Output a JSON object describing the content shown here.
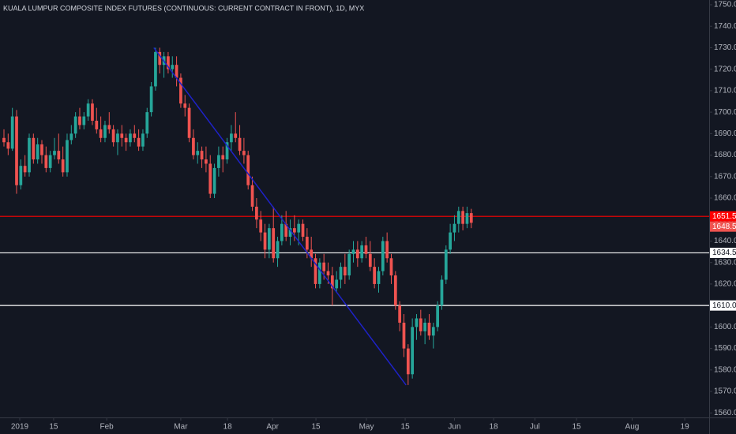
{
  "chart_data": {
    "type": "candlestick",
    "title": "KUALA LUMPUR COMPOSITE INDEX FUTURES (CONTINUOUS: CURRENT CONTRACT IN FRONT), 1D, MYX",
    "up_color": "#26a69a",
    "down_color": "#ef5350",
    "ohlc": [
      [
        1688,
        1692,
        1684,
        1686
      ],
      [
        1686,
        1690,
        1680,
        1683
      ],
      [
        1683,
        1702,
        1682,
        1698
      ],
      [
        1698,
        1701,
        1662,
        1666
      ],
      [
        1666,
        1678,
        1664,
        1675
      ],
      [
        1675,
        1680,
        1670,
        1672
      ],
      [
        1672,
        1690,
        1670,
        1688
      ],
      [
        1688,
        1690,
        1676,
        1678
      ],
      [
        1678,
        1688,
        1676,
        1685
      ],
      [
        1685,
        1687,
        1676,
        1680
      ],
      [
        1680,
        1684,
        1672,
        1674
      ],
      [
        1674,
        1682,
        1672,
        1680
      ],
      [
        1680,
        1688,
        1678,
        1682
      ],
      [
        1682,
        1690,
        1676,
        1678
      ],
      [
        1678,
        1684,
        1670,
        1672
      ],
      [
        1672,
        1690,
        1670,
        1687
      ],
      [
        1687,
        1694,
        1685,
        1690
      ],
      [
        1690,
        1700,
        1688,
        1698
      ],
      [
        1698,
        1702,
        1692,
        1694
      ],
      [
        1694,
        1700,
        1692,
        1698
      ],
      [
        1698,
        1706,
        1696,
        1704
      ],
      [
        1704,
        1706,
        1694,
        1696
      ],
      [
        1696,
        1702,
        1690,
        1692
      ],
      [
        1692,
        1698,
        1686,
        1688
      ],
      [
        1688,
        1696,
        1686,
        1694
      ],
      [
        1694,
        1700,
        1690,
        1692
      ],
      [
        1692,
        1694,
        1684,
        1686
      ],
      [
        1686,
        1692,
        1680,
        1690
      ],
      [
        1690,
        1694,
        1684,
        1688
      ],
      [
        1688,
        1690,
        1682,
        1686
      ],
      [
        1686,
        1692,
        1684,
        1690
      ],
      [
        1690,
        1694,
        1686,
        1688
      ],
      [
        1688,
        1692,
        1682,
        1684
      ],
      [
        1684,
        1692,
        1682,
        1690
      ],
      [
        1690,
        1702,
        1688,
        1700
      ],
      [
        1700,
        1714,
        1698,
        1712
      ],
      [
        1712,
        1730,
        1710,
        1728
      ],
      [
        1728,
        1730,
        1718,
        1722
      ],
      [
        1722,
        1728,
        1716,
        1726
      ],
      [
        1726,
        1728,
        1718,
        1720
      ],
      [
        1720,
        1726,
        1716,
        1722
      ],
      [
        1722,
        1726,
        1712,
        1716
      ],
      [
        1716,
        1718,
        1702,
        1704
      ],
      [
        1704,
        1708,
        1698,
        1702
      ],
      [
        1702,
        1704,
        1686,
        1688
      ],
      [
        1688,
        1692,
        1678,
        1680
      ],
      [
        1680,
        1686,
        1676,
        1682
      ],
      [
        1682,
        1684,
        1674,
        1678
      ],
      [
        1678,
        1684,
        1672,
        1676
      ],
      [
        1676,
        1680,
        1660,
        1662
      ],
      [
        1662,
        1676,
        1660,
        1674
      ],
      [
        1674,
        1684,
        1670,
        1680
      ],
      [
        1680,
        1684,
        1672,
        1678
      ],
      [
        1678,
        1688,
        1676,
        1686
      ],
      [
        1686,
        1694,
        1682,
        1690
      ],
      [
        1690,
        1700,
        1686,
        1688
      ],
      [
        1688,
        1694,
        1680,
        1682
      ],
      [
        1682,
        1688,
        1676,
        1680
      ],
      [
        1680,
        1682,
        1664,
        1666
      ],
      [
        1666,
        1670,
        1654,
        1656
      ],
      [
        1656,
        1660,
        1646,
        1650
      ],
      [
        1650,
        1654,
        1640,
        1644
      ],
      [
        1644,
        1648,
        1632,
        1636
      ],
      [
        1636,
        1648,
        1632,
        1646
      ],
      [
        1646,
        1656,
        1630,
        1632
      ],
      [
        1632,
        1642,
        1628,
        1640
      ],
      [
        1640,
        1652,
        1638,
        1648
      ],
      [
        1648,
        1654,
        1640,
        1642
      ],
      [
        1642,
        1650,
        1638,
        1646
      ],
      [
        1646,
        1652,
        1640,
        1644
      ],
      [
        1644,
        1650,
        1638,
        1648
      ],
      [
        1648,
        1650,
        1640,
        1642
      ],
      [
        1642,
        1646,
        1632,
        1636
      ],
      [
        1636,
        1642,
        1628,
        1632
      ],
      [
        1632,
        1634,
        1618,
        1620
      ],
      [
        1620,
        1632,
        1618,
        1630
      ],
      [
        1630,
        1634,
        1622,
        1626
      ],
      [
        1626,
        1630,
        1620,
        1624
      ],
      [
        1624,
        1628,
        1610,
        1618
      ],
      [
        1618,
        1626,
        1616,
        1622
      ],
      [
        1622,
        1630,
        1618,
        1628
      ],
      [
        1628,
        1634,
        1620,
        1624
      ],
      [
        1624,
        1636,
        1622,
        1634
      ],
      [
        1634,
        1640,
        1630,
        1636
      ],
      [
        1636,
        1640,
        1628,
        1632
      ],
      [
        1632,
        1640,
        1630,
        1638
      ],
      [
        1638,
        1642,
        1632,
        1634
      ],
      [
        1634,
        1640,
        1626,
        1628
      ],
      [
        1628,
        1632,
        1618,
        1620
      ],
      [
        1620,
        1628,
        1616,
        1626
      ],
      [
        1626,
        1642,
        1624,
        1640
      ],
      [
        1640,
        1644,
        1630,
        1632
      ],
      [
        1632,
        1634,
        1620,
        1624
      ],
      [
        1624,
        1626,
        1608,
        1610
      ],
      [
        1610,
        1612,
        1598,
        1602
      ],
      [
        1602,
        1606,
        1586,
        1590
      ],
      [
        1590,
        1592,
        1573,
        1578
      ],
      [
        1578,
        1604,
        1576,
        1600
      ],
      [
        1600,
        1606,
        1594,
        1604
      ],
      [
        1604,
        1608,
        1596,
        1598
      ],
      [
        1598,
        1604,
        1592,
        1602
      ],
      [
        1602,
        1606,
        1594,
        1596
      ],
      [
        1596,
        1602,
        1590,
        1600
      ],
      [
        1600,
        1612,
        1598,
        1610
      ],
      [
        1610,
        1624,
        1608,
        1622
      ],
      [
        1622,
        1638,
        1620,
        1636
      ],
      [
        1636,
        1648,
        1634,
        1644
      ],
      [
        1644,
        1652,
        1640,
        1648
      ],
      [
        1648,
        1656,
        1644,
        1654
      ],
      [
        1654,
        1656,
        1645,
        1648
      ],
      [
        1648,
        1656,
        1646,
        1653
      ],
      [
        1653,
        1655,
        1646,
        1648.5
      ]
    ],
    "xlim": [
      -0.94,
      167.5
    ],
    "xticks": [
      {
        "value": 3.75,
        "label": "2019"
      },
      {
        "value": 11.8,
        "label": "15"
      },
      {
        "value": 24.4,
        "label": "Feb"
      },
      {
        "value": 42,
        "label": "Mar"
      },
      {
        "value": 53.1,
        "label": "18"
      },
      {
        "value": 63.8,
        "label": "Apr"
      },
      {
        "value": 74.1,
        "label": "15"
      },
      {
        "value": 86.1,
        "label": "May"
      },
      {
        "value": 95.3,
        "label": "15"
      },
      {
        "value": 107,
        "label": "Jun"
      },
      {
        "value": 116.3,
        "label": "18"
      },
      {
        "value": 126.1,
        "label": "Jul"
      },
      {
        "value": 136,
        "label": "15"
      },
      {
        "value": 149.2,
        "label": "Aug"
      },
      {
        "value": 161.7,
        "label": "19"
      }
    ],
    "ylim": [
      1557.9,
      1752.2
    ],
    "yticks": [
      {
        "value": 1560,
        "label": "1560.0"
      },
      {
        "value": 1570,
        "label": "1570.0"
      },
      {
        "value": 1580,
        "label": "1580.0"
      },
      {
        "value": 1590,
        "label": "1590.0"
      },
      {
        "value": 1600,
        "label": "1600.0"
      },
      {
        "value": 1610,
        "label": "1610.0"
      },
      {
        "value": 1620,
        "label": "1620.0"
      },
      {
        "value": 1630,
        "label": "1630.0"
      },
      {
        "value": 1640,
        "label": "1640.0"
      },
      {
        "value": 1650,
        "label": "1650.0"
      },
      {
        "value": 1660,
        "label": "1660.0"
      },
      {
        "value": 1670,
        "label": "1670.0"
      },
      {
        "value": 1680,
        "label": "1680.0"
      },
      {
        "value": 1690,
        "label": "1690.0"
      },
      {
        "value": 1700,
        "label": "1700.0"
      },
      {
        "value": 1710,
        "label": "1710.0"
      },
      {
        "value": 1720,
        "label": "1720.0"
      },
      {
        "value": 1730,
        "label": "1730.0"
      },
      {
        "value": 1740,
        "label": "1740.0"
      },
      {
        "value": 1750,
        "label": "1750.0"
      }
    ],
    "hlines": [
      {
        "value": 1651.5,
        "color": "#ff0000"
      },
      {
        "value": 1634.5,
        "color": "#ffffff"
      },
      {
        "value": 1610,
        "label": "1610.0",
        "color": "#ffffff"
      }
    ],
    "trendline": {
      "x": [
        35.6,
        95.5
      ],
      "y": [
        1730,
        1573
      ],
      "color": "#1e22c8"
    }
  }
}
